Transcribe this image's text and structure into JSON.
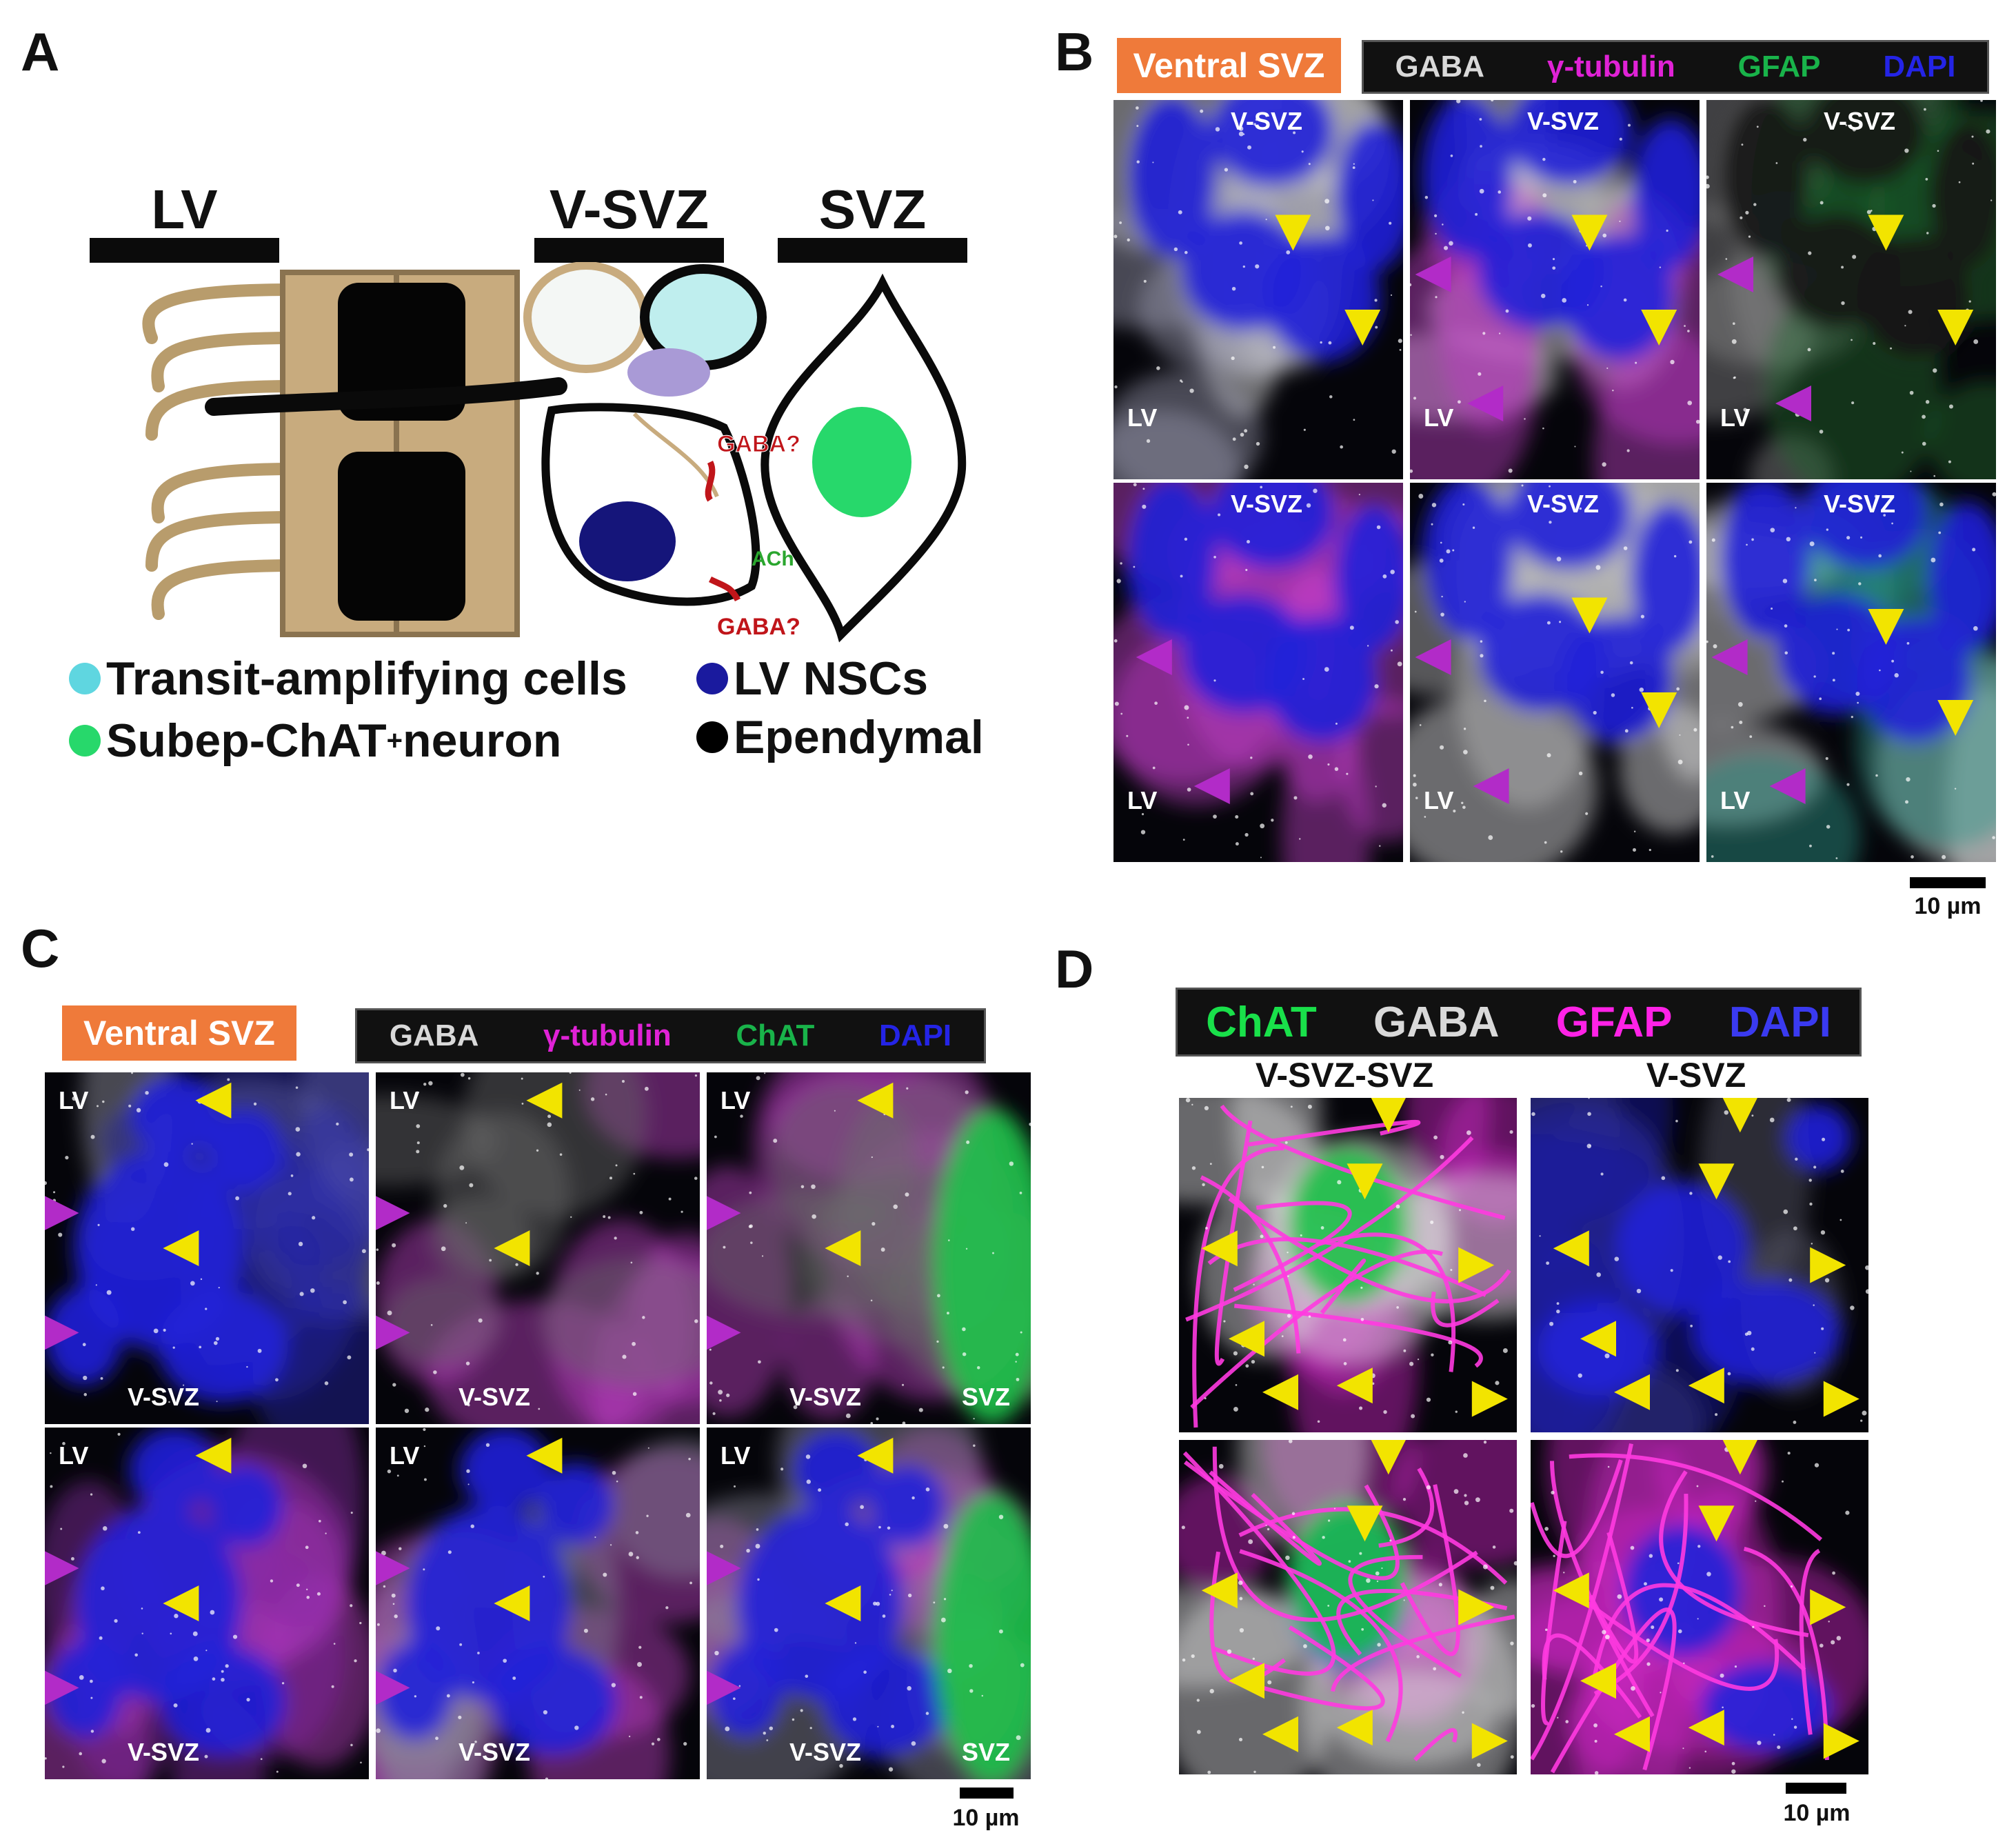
{
  "panel_letters": {
    "a": "A",
    "b": "B",
    "c": "C",
    "d": "D"
  },
  "panel_a": {
    "region_labels": {
      "lv": "LV",
      "vsvz": "V-SVZ",
      "svz": "SVZ"
    },
    "annotations": {
      "gaba_top": "GABA?",
      "gaba_bottom": "GABA?",
      "ach": "ACh"
    },
    "legend": [
      {
        "label": "Transit-amplifying cells",
        "color": "#5fd6e0"
      },
      {
        "label": "LV NSCs",
        "color": "#1a1a9e"
      },
      {
        "label": "Subep-ChAT",
        "sup": "+",
        "suffix": " neuron",
        "color": "#27d86b"
      },
      {
        "label": "Ependymal",
        "color": "#000000"
      }
    ]
  },
  "panel_b": {
    "region_tag": "Ventral SVZ",
    "channels": [
      {
        "name": "GABA",
        "color": "#d9d9d9"
      },
      {
        "name": "γ-tubulin",
        "color": "#e022d6"
      },
      {
        "name": "GFAP",
        "color": "#19b34a"
      },
      {
        "name": "DAPI",
        "color": "#2424e6"
      }
    ],
    "panel_top_label": "V-SVZ",
    "panel_corner_label": "LV",
    "scale_bar": "10 µm"
  },
  "panel_c": {
    "region_tag": "Ventral SVZ",
    "channels": [
      {
        "name": "GABA",
        "color": "#d9d9d9"
      },
      {
        "name": "γ-tubulin",
        "color": "#e022d6"
      },
      {
        "name": "ChAT",
        "color": "#19b34a"
      },
      {
        "name": "DAPI",
        "color": "#2424e6"
      }
    ],
    "corner_label": "LV",
    "bottom_label": "V-SVZ",
    "svz_label": "SVZ",
    "scale_bar": "10 µm"
  },
  "panel_d": {
    "channels": [
      {
        "name": "ChAT",
        "color": "#19e04a"
      },
      {
        "name": "GABA",
        "color": "#d9d9d9"
      },
      {
        "name": "GFAP",
        "color": "#ff22e6"
      },
      {
        "name": "DAPI",
        "color": "#3a3af0"
      }
    ],
    "column_headers": [
      "V-SVZ-SVZ",
      "V-SVZ"
    ],
    "scale_bar": "10 µm"
  }
}
